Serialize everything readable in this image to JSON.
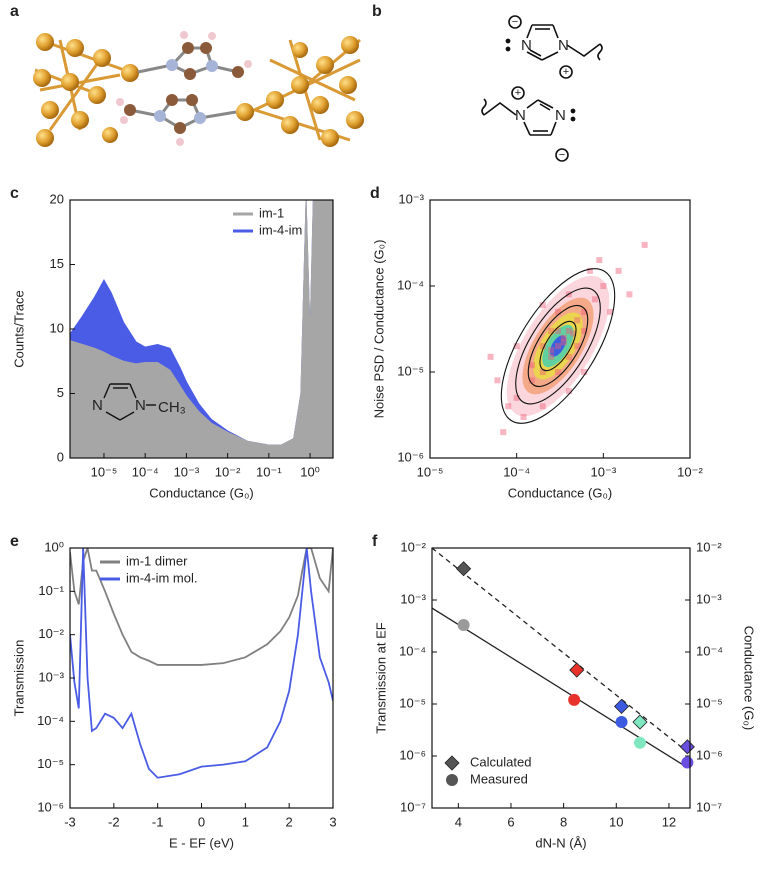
{
  "figure": {
    "panel_a": {
      "label": "a"
    },
    "panel_b": {
      "label": "b",
      "atoms": [
        "N",
        "N",
        "N",
        "N"
      ],
      "charges": [
        "−",
        "+",
        "+",
        "−"
      ]
    }
  },
  "chart_data": [
    {
      "type": "area",
      "label": "c",
      "xscale": "log",
      "xlim": [
        1.5e-06,
        3.6
      ],
      "xticks": [
        {
          "value": 1e-05,
          "label": "10⁻⁵"
        },
        {
          "value": 0.0001,
          "label": "10⁻⁴"
        },
        {
          "value": 0.001,
          "label": "10⁻³"
        },
        {
          "value": 0.01,
          "label": "10⁻²"
        },
        {
          "value": 0.1,
          "label": "10⁻¹"
        },
        {
          "value": 1,
          "label": "10⁰"
        }
      ],
      "ylim": [
        0,
        20
      ],
      "yticks": [
        0,
        5,
        10,
        15,
        20
      ],
      "xlabel": "Conductance (G₀)",
      "ylabel": "Counts/Trace",
      "legend": "upper right",
      "x": [
        1.5e-06,
        3e-06,
        6e-06,
        1e-05,
        1.5e-05,
        3e-05,
        6e-05,
        0.0001,
        0.0002,
        0.0004,
        0.0007,
        0.001,
        0.002,
        0.004,
        0.01,
        0.03,
        0.1,
        0.2,
        0.4,
        0.6,
        0.8,
        1,
        1.2,
        1.6,
        3.6
      ],
      "series": [
        {
          "name": "im-1",
          "color": "#a6a6a6",
          "values": [
            9.1,
            8.8,
            8.5,
            8.2,
            7.9,
            7.5,
            7.3,
            7.4,
            7.4,
            6.8,
            5.6,
            4.8,
            3.6,
            2.7,
            2.0,
            1.3,
            1.0,
            1.0,
            1.5,
            5,
            20,
            9.5,
            20,
            20,
            20
          ]
        },
        {
          "name": "im-4-im",
          "color": "#4a5ce6",
          "values": [
            9.6,
            11,
            12.5,
            13.8,
            12.8,
            10.5,
            9,
            8.6,
            8.8,
            8.5,
            7,
            5.9,
            4.2,
            3.0,
            2.1,
            1.3,
            1.0,
            1.0,
            1.5,
            5,
            20,
            9.5,
            20,
            20,
            20
          ]
        }
      ],
      "inset_labels": [
        "N",
        "N",
        "CH₃"
      ]
    },
    {
      "type": "scatter",
      "label": "d",
      "xscale": "log",
      "yscale": "log",
      "xlim": [
        1e-05,
        0.01
      ],
      "ylim": [
        1e-06,
        0.001
      ],
      "xticks": [
        {
          "value": 1e-05,
          "label": "10⁻⁵"
        },
        {
          "value": 0.0001,
          "label": "10⁻⁴"
        },
        {
          "value": 0.001,
          "label": "10⁻³"
        },
        {
          "value": 0.01,
          "label": "10⁻²"
        }
      ],
      "yticks": [
        {
          "value": 1e-06,
          "label": "10⁻⁶"
        },
        {
          "value": 1e-05,
          "label": "10⁻⁵"
        },
        {
          "value": 0.0001,
          "label": "10⁻⁴"
        },
        {
          "value": 0.001,
          "label": "10⁻³"
        }
      ],
      "xlabel": "Conductance (G₀)",
      "ylabel": "Noise PSD / Conductance (G₀)",
      "series": [
        {
          "color": "#ee5a78",
          "marker": "square",
          "alpha": 0.45,
          "x": [
            0.0001,
            0.00015,
            0.0002,
            0.00025,
            0.0003,
            0.00035,
            0.0004,
            0.0005,
            0.0006,
            0.0008,
            0.001,
            0.0002,
            0.0003,
            0.0004,
            0.00025,
            0.0005,
            0.00015,
            0.0006,
            0.0003,
            0.0007,
            0.00012,
            8e-05,
            0.0002,
            6e-05,
            0.0015,
            0.0012,
            0.0004,
            0.0009,
            0.0002,
            7e-05,
            0.003,
            5e-05,
            0.002,
            0.0001,
            0.0004,
            0.0006,
            0.0003,
            0.00025,
            0.00035,
            0.00045
          ],
          "values": [
            5e-06,
            8e-06,
            1e-05,
            1.5e-05,
            2e-05,
            2.5e-05,
            3e-05,
            4e-05,
            5e-05,
            7e-05,
            0.0001,
            2e-05,
            1e-05,
            1.5e-05,
            3e-05,
            2e-05,
            1.2e-05,
            3e-05,
            5e-05,
            0.00015,
            3e-06,
            4e-06,
            4e-06,
            8e-06,
            0.00015,
            5e-05,
            8e-05,
            0.0002,
            6e-05,
            2e-06,
            0.0003,
            1.5e-05,
            8e-05,
            2e-05,
            6e-06,
            1e-05,
            3e-05,
            1.8e-05,
            2.2e-05,
            2.8e-05
          ]
        }
      ]
    },
    {
      "type": "line",
      "label": "e",
      "yscale": "log",
      "xlim": [
        -3,
        3
      ],
      "ylim": [
        1e-06,
        1
      ],
      "xticks": [
        -3,
        -2,
        -1,
        0,
        1,
        2,
        3
      ],
      "yticks": [
        {
          "value": 1e-06,
          "label": "10⁻⁶"
        },
        {
          "value": 1e-05,
          "label": "10⁻⁵"
        },
        {
          "value": 0.0001,
          "label": "10⁻⁴"
        },
        {
          "value": 0.001,
          "label": "10⁻³"
        },
        {
          "value": 0.01,
          "label": "10⁻²"
        },
        {
          "value": 0.1,
          "label": "10⁻¹"
        },
        {
          "value": 1,
          "label": "10⁰"
        }
      ],
      "xlabel": "E - EF (eV)",
      "ylabel": "Transmission",
      "legend": "upper left",
      "x": [
        -3,
        -2.9,
        -2.8,
        -2.7,
        -2.6,
        -2.5,
        -2.4,
        -2.2,
        -2,
        -1.8,
        -1.6,
        -1.4,
        -1.2,
        -1,
        -0.5,
        0,
        0.5,
        1,
        1.5,
        1.8,
        2,
        2.2,
        2.3,
        2.4,
        2.5,
        2.7,
        2.9,
        3
      ],
      "series": [
        {
          "name": "im-1 dimer",
          "color": "#808080",
          "values": [
            0.8,
            0.1,
            0.05,
            0.5,
            1,
            0.3,
            0.3,
            0.1,
            0.03,
            0.01,
            0.004,
            0.003,
            0.0025,
            0.002,
            0.002,
            0.002,
            0.0022,
            0.003,
            0.006,
            0.012,
            0.025,
            0.08,
            0.3,
            1,
            1,
            0.2,
            0.1,
            1
          ]
        },
        {
          "name": "im-4-im mol.",
          "color": "#4a5ce6",
          "values": [
            0.01,
            0.0008,
            0.0002,
            1,
            0.001,
            6e-05,
            7e-05,
            0.00015,
            0.00012,
            7e-05,
            0.00015,
            3e-05,
            8e-06,
            5e-06,
            6e-06,
            9e-06,
            1e-05,
            1.2e-05,
            2.5e-05,
            0.0001,
            0.0005,
            0.01,
            0.1,
            1,
            0.1,
            0.003,
            0.0008,
            0.0003
          ]
        }
      ]
    },
    {
      "type": "scatter",
      "label": "f",
      "yscale": "log",
      "xlim": [
        3,
        12.8
      ],
      "ylim": [
        1e-07,
        0.01
      ],
      "y2lim": [
        1e-07,
        0.01
      ],
      "xticks": [
        4,
        6,
        8,
        10,
        12
      ],
      "yticks": [
        {
          "value": 1e-07,
          "label": "10⁻⁷"
        },
        {
          "value": 1e-06,
          "label": "10⁻⁶"
        },
        {
          "value": 1e-05,
          "label": "10⁻⁵"
        },
        {
          "value": 0.0001,
          "label": "10⁻⁴"
        },
        {
          "value": 0.001,
          "label": "10⁻³"
        },
        {
          "value": 0.01,
          "label": "10⁻²"
        }
      ],
      "y2ticks": [
        {
          "value": 1e-07,
          "label": "10⁻⁷"
        },
        {
          "value": 1e-06,
          "label": "10⁻⁶"
        },
        {
          "value": 1e-05,
          "label": "10⁻⁵"
        },
        {
          "value": 0.0001,
          "label": "10⁻⁴"
        },
        {
          "value": 0.001,
          "label": "10⁻³"
        },
        {
          "value": 0.01,
          "label": "10⁻²"
        }
      ],
      "xlabel": "dN-N (Å)",
      "ylabel": "Transmission at EF",
      "y2label": "Conductance (G₀)",
      "legend": "lower left",
      "series": [
        {
          "name": "Calculated",
          "marker": "diamond",
          "color": "#555555",
          "colors": [
            "#555555",
            "#e8322c",
            "#3d5be0",
            "#7fe8c0",
            "#6a4ee0"
          ],
          "x": [
            4.2,
            8.5,
            10.2,
            10.9,
            12.7
          ],
          "values": [
            0.004,
            4.5e-05,
            9e-06,
            4.5e-06,
            1.5e-06
          ]
        },
        {
          "name": "Measured",
          "marker": "circle",
          "color": "#555555",
          "colors": [
            "#9a9a9a",
            "#e8322c",
            "#3d5be0",
            "#7fe8c0",
            "#6a4ee0"
          ],
          "x": [
            4.2,
            8.4,
            10.2,
            10.9,
            12.7
          ],
          "values": [
            0.00033,
            1.2e-05,
            4.5e-06,
            1.8e-06,
            7.5e-07
          ]
        }
      ],
      "fits": [
        {
          "style": "dashed",
          "x": [
            3,
            12.7
          ],
          "values": [
            0.01,
            1.2e-06
          ]
        },
        {
          "style": "solid",
          "x": [
            3,
            12.7
          ],
          "values": [
            0.0007,
            6e-07
          ]
        }
      ]
    }
  ]
}
